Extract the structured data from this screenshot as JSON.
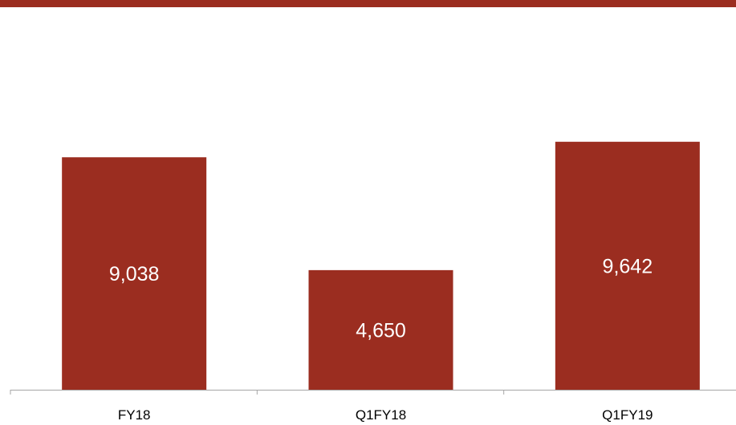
{
  "colors": {
    "accent": "#9B2D20",
    "axis": "#A6A6A6"
  },
  "chart_data": {
    "type": "bar",
    "categories": [
      "FY18",
      "Q1FY18",
      "Q1FY19"
    ],
    "values": [
      9038,
      4650,
      9642
    ],
    "data_labels": [
      "9,038",
      "4,650",
      "9,642"
    ],
    "title": "",
    "xlabel": "",
    "ylabel": "",
    "ylim": [
      0,
      10500
    ],
    "grid": false,
    "legend": "none"
  }
}
